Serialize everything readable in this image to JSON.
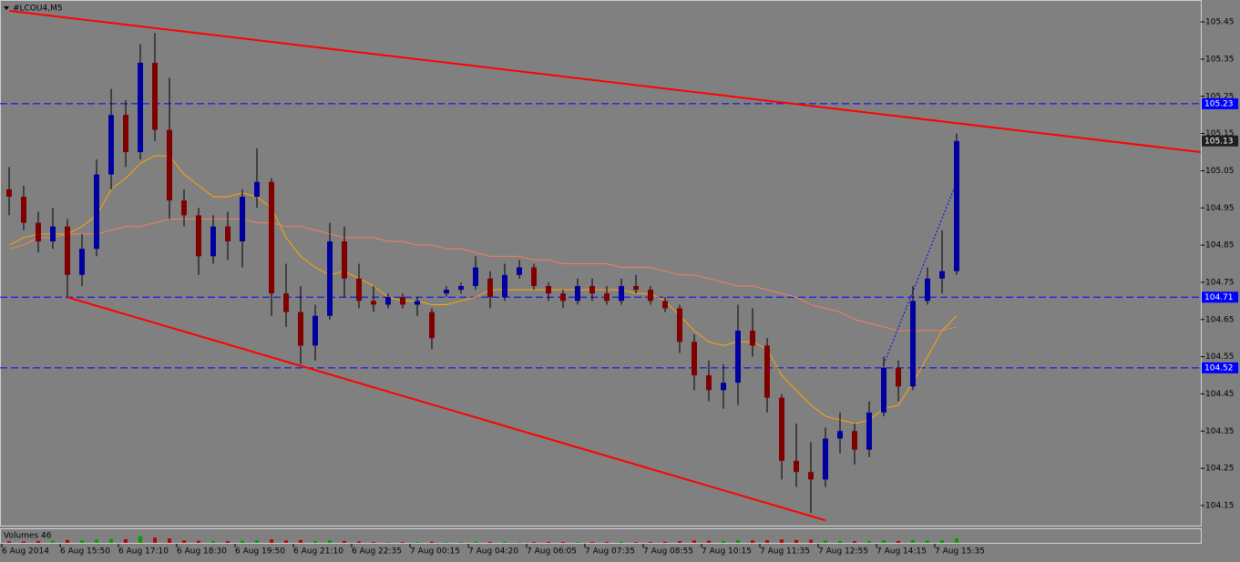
{
  "chart_data": {
    "type": "candlestick",
    "title": "#LCOU4,M5",
    "categories": [
      "6 Aug 2014",
      null,
      null,
      null,
      "6 Aug 15:50",
      null,
      null,
      null,
      "6 Aug 17:10",
      null,
      null,
      null,
      "6 Aug 18:30",
      null,
      null,
      null,
      "6 Aug 19:50",
      null,
      null,
      null,
      "6 Aug 21:10",
      null,
      null,
      null,
      "6 Aug 22:35",
      null,
      null,
      null,
      "7 Aug 00:15",
      null,
      null,
      null,
      "7 Aug 04:20",
      null,
      null,
      null,
      "7 Aug 06:05",
      null,
      null,
      null,
      "7 Aug 07:35",
      null,
      null,
      null,
      "7 Aug 08:55",
      null,
      null,
      null,
      "7 Aug 10:15",
      null,
      null,
      null,
      "7 Aug 11:35",
      null,
      null,
      null,
      "7 Aug 12:55",
      null,
      null,
      null,
      "7 Aug 14:15",
      null,
      null,
      null,
      "7 Aug 15:35",
      null
    ],
    "open": [
      105.0,
      104.98,
      104.91,
      104.86,
      104.9,
      104.77,
      104.84,
      105.04,
      105.2,
      105.1,
      105.34,
      105.16,
      104.97,
      104.93,
      104.82,
      104.9,
      104.86,
      104.98,
      105.02,
      104.72,
      104.67,
      104.58,
      104.66,
      104.86,
      104.76,
      104.7,
      104.69,
      104.71,
      104.69,
      104.67,
      104.72,
      104.73,
      104.74,
      104.76,
      104.71,
      104.77,
      104.79,
      104.74,
      104.72,
      104.7,
      104.74,
      104.72,
      104.7,
      104.74,
      104.73,
      104.7,
      104.68,
      104.59,
      104.5,
      104.46,
      104.48,
      104.62,
      104.58,
      104.44,
      104.27,
      104.24,
      104.22,
      104.33,
      104.35,
      104.3,
      104.4,
      104.52,
      104.47,
      104.7,
      104.76,
      104.78
    ],
    "high": [
      105.06,
      105.01,
      104.94,
      104.95,
      104.92,
      104.88,
      105.08,
      105.27,
      105.24,
      105.39,
      105.42,
      105.3,
      105.0,
      104.95,
      104.93,
      104.94,
      105.0,
      105.11,
      105.03,
      104.8,
      104.74,
      104.69,
      104.91,
      104.9,
      104.8,
      104.74,
      104.72,
      104.72,
      104.71,
      104.68,
      104.74,
      104.75,
      104.82,
      104.78,
      104.8,
      104.81,
      104.8,
      104.75,
      104.73,
      104.76,
      104.76,
      104.74,
      104.76,
      104.77,
      104.74,
      104.71,
      104.69,
      104.61,
      104.54,
      104.53,
      104.69,
      104.68,
      104.6,
      104.45,
      104.37,
      104.32,
      104.36,
      104.4,
      104.37,
      104.43,
      104.55,
      104.54,
      104.74,
      104.79,
      104.89,
      105.15
    ],
    "low": [
      104.93,
      104.89,
      104.83,
      104.84,
      104.71,
      104.74,
      104.82,
      105.0,
      105.06,
      105.08,
      105.13,
      104.92,
      104.9,
      104.77,
      104.8,
      104.81,
      104.79,
      104.95,
      104.66,
      104.63,
      104.53,
      104.54,
      104.65,
      104.71,
      104.68,
      104.67,
      104.68,
      104.68,
      104.66,
      104.57,
      104.71,
      104.72,
      104.73,
      104.68,
      104.7,
      104.76,
      104.73,
      104.7,
      104.68,
      104.69,
      104.7,
      104.69,
      104.69,
      104.72,
      104.69,
      104.67,
      104.56,
      104.46,
      104.43,
      104.41,
      104.42,
      104.55,
      104.4,
      104.22,
      104.2,
      104.13,
      104.2,
      104.29,
      104.26,
      104.28,
      104.39,
      104.43,
      104.46,
      104.69,
      104.72,
      104.77
    ],
    "close": [
      104.98,
      104.91,
      104.86,
      104.9,
      104.77,
      104.84,
      105.04,
      105.2,
      105.1,
      105.34,
      105.16,
      104.97,
      104.93,
      104.82,
      104.9,
      104.86,
      104.98,
      105.02,
      104.72,
      104.67,
      104.58,
      104.66,
      104.86,
      104.76,
      104.7,
      104.69,
      104.71,
      104.69,
      104.7,
      104.6,
      104.73,
      104.74,
      104.79,
      104.71,
      104.77,
      104.79,
      104.74,
      104.72,
      104.7,
      104.74,
      104.72,
      104.7,
      104.74,
      104.73,
      104.7,
      104.68,
      104.59,
      104.5,
      104.46,
      104.48,
      104.62,
      104.58,
      104.44,
      104.27,
      104.24,
      104.22,
      104.33,
      104.35,
      104.3,
      104.4,
      104.52,
      104.47,
      104.7,
      104.76,
      104.78,
      105.13
    ],
    "up_color": "#0000a0",
    "down_color": "#800000",
    "ylim": [
      104.096,
      105.509
    ],
    "yticks": [
      105.45,
      105.35,
      105.25,
      105.15,
      105.05,
      104.95,
      104.85,
      104.75,
      104.65,
      104.55,
      104.45,
      104.35,
      104.25,
      104.15
    ],
    "moving_averages": [
      {
        "color": "#ffa500",
        "values": [
          104.85,
          104.87,
          104.88,
          104.88,
          104.88,
          104.9,
          104.93,
          105.0,
          105.03,
          105.07,
          105.09,
          105.09,
          105.04,
          105.01,
          104.98,
          104.98,
          104.99,
          104.98,
          104.95,
          104.87,
          104.82,
          104.79,
          104.77,
          104.78,
          104.76,
          104.74,
          104.71,
          104.7,
          104.7,
          104.69,
          104.69,
          104.7,
          104.71,
          104.73,
          104.73,
          104.73,
          104.73,
          104.73,
          104.73,
          104.73,
          104.73,
          104.73,
          104.73,
          104.72,
          104.72,
          104.7,
          104.66,
          104.62,
          104.59,
          104.58,
          104.59,
          104.59,
          104.57,
          104.5,
          104.46,
          104.42,
          104.39,
          104.38,
          104.37,
          104.38,
          104.41,
          104.42,
          104.48,
          104.55,
          104.62,
          104.66
        ]
      },
      {
        "color": "#f08060",
        "values": [
          104.84,
          104.85,
          104.87,
          104.87,
          104.88,
          104.88,
          104.88,
          104.89,
          104.9,
          104.9,
          104.91,
          104.92,
          104.92,
          104.92,
          104.92,
          104.92,
          104.92,
          104.91,
          104.91,
          104.9,
          104.9,
          104.89,
          104.88,
          104.87,
          104.87,
          104.87,
          104.86,
          104.86,
          104.85,
          104.85,
          104.84,
          104.84,
          104.83,
          104.82,
          104.82,
          104.82,
          104.81,
          104.81,
          104.8,
          104.8,
          104.8,
          104.8,
          104.79,
          104.79,
          104.79,
          104.78,
          104.77,
          104.77,
          104.76,
          104.75,
          104.74,
          104.74,
          104.73,
          104.72,
          104.71,
          104.69,
          104.68,
          104.67,
          104.65,
          104.64,
          104.63,
          104.62,
          104.62,
          104.62,
          104.62,
          104.63
        ]
      }
    ],
    "hlines": [
      {
        "value": 105.23,
        "color": "#0000ff"
      },
      {
        "value": 104.71,
        "color": "#0000ff"
      },
      {
        "value": 104.52,
        "color": "#0000ff"
      }
    ],
    "trendlines": [
      {
        "x": [
          0,
          82
        ],
        "y": [
          105.48,
          105.1
        ],
        "color": "#ff0000"
      },
      {
        "x": [
          4,
          56
        ],
        "y": [
          104.71,
          104.11
        ],
        "color": "#ff0000"
      },
      {
        "x": [
          60,
          65
        ],
        "y": [
          104.53,
          105.02
        ],
        "color": "#0000ff"
      }
    ],
    "volume": {
      "label": "Volumes",
      "values": [
        18,
        15,
        20,
        22,
        30,
        25,
        35,
        40,
        38,
        70,
        55,
        45,
        25,
        22,
        20,
        18,
        22,
        28,
        35,
        25,
        30,
        20,
        28,
        20,
        15,
        10,
        8,
        8,
        10,
        12,
        8,
        8,
        14,
        10,
        12,
        8,
        9,
        10,
        10,
        9,
        10,
        9,
        12,
        8,
        10,
        12,
        18,
        25,
        22,
        20,
        30,
        25,
        28,
        35,
        30,
        32,
        25,
        20,
        18,
        22,
        28,
        20,
        30,
        25,
        28,
        46
      ],
      "ylim": [
        0,
        130
      ],
      "up_color": "#00a000",
      "down_color": "#c00000"
    }
  }
}
